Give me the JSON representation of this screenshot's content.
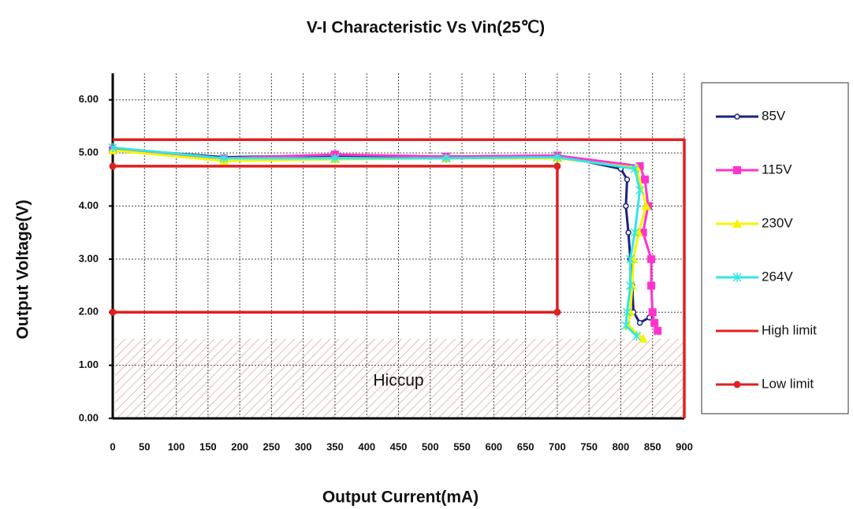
{
  "chart_data": {
    "type": "line",
    "title": "V-I Characteristic  Vs Vin(25℃)",
    "x_label": "Output Current(mA)",
    "y_label": "Output Voltage(V)",
    "xlim": [
      0,
      900
    ],
    "xticks": [
      0,
      50,
      100,
      150,
      200,
      250,
      300,
      350,
      400,
      450,
      500,
      550,
      600,
      650,
      700,
      750,
      800,
      850,
      900
    ],
    "ylim": [
      0,
      6.5
    ],
    "yticks": [
      {
        "value": 0,
        "label": "0.00"
      },
      {
        "value": 1,
        "label": "1.00"
      },
      {
        "value": 2,
        "label": "2.00"
      },
      {
        "value": 3,
        "label": "3.00"
      },
      {
        "value": 4,
        "label": "4.00"
      },
      {
        "value": 5,
        "label": "5.00"
      },
      {
        "value": 6,
        "label": "6.00"
      }
    ],
    "grid": true,
    "legend": "right",
    "series": [
      {
        "name": "85V",
        "color": "#1a237e",
        "marker": "circle",
        "x": [
          0,
          175,
          350,
          525,
          700,
          800,
          810,
          808,
          812,
          815,
          818,
          820,
          830,
          845
        ],
        "values": [
          5.08,
          4.92,
          4.95,
          4.93,
          4.95,
          4.7,
          4.5,
          4.0,
          3.5,
          3.0,
          2.5,
          2.0,
          1.8,
          1.9
        ]
      },
      {
        "name": "115V",
        "color": "#ff33cc",
        "marker": "square",
        "x": [
          0,
          175,
          350,
          525,
          700,
          830,
          838,
          843,
          835,
          848,
          848,
          850,
          853,
          858
        ],
        "values": [
          5.05,
          4.9,
          4.97,
          4.93,
          4.95,
          4.75,
          4.5,
          4.0,
          3.5,
          3.0,
          2.5,
          2.0,
          1.8,
          1.65
        ]
      },
      {
        "name": "230V",
        "color": "#f5f500",
        "marker": "triangle",
        "x": [
          0,
          175,
          350,
          525,
          700,
          825,
          840,
          828,
          820,
          818,
          815,
          812,
          835
        ],
        "values": [
          5.05,
          4.85,
          4.88,
          4.9,
          4.9,
          4.72,
          4.0,
          3.5,
          3.0,
          2.5,
          2.0,
          1.75,
          1.5
        ]
      },
      {
        "name": "264V",
        "color": "#33e6e6",
        "marker": "star",
        "x": [
          0,
          175,
          350,
          525,
          700,
          822,
          830,
          822,
          815,
          815,
          810,
          808,
          825
        ],
        "values": [
          5.1,
          4.9,
          4.9,
          4.9,
          4.92,
          4.7,
          4.3,
          3.5,
          3.0,
          2.5,
          2.0,
          1.75,
          1.55
        ]
      },
      {
        "name": "High limit",
        "color": "#e02020",
        "marker": "dash",
        "x": [
          0,
          900,
          900
        ],
        "values": [
          5.25,
          5.25,
          0
        ]
      },
      {
        "name": "Low limit",
        "color": "#e02020",
        "marker": "dot",
        "x": [
          0,
          700,
          700,
          0
        ],
        "values": [
          4.75,
          4.75,
          2.0,
          2.0
        ]
      }
    ],
    "hiccup_region": {
      "label": "Hiccup",
      "ylim": [
        0,
        1.5
      ]
    }
  }
}
